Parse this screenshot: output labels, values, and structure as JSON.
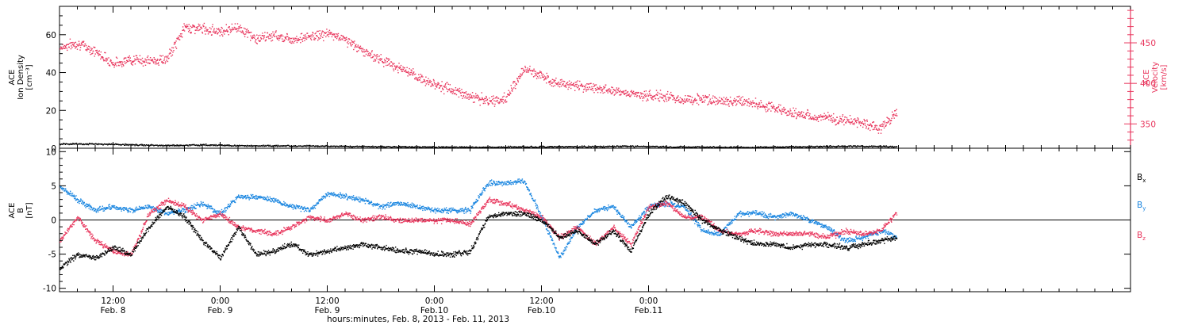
{
  "chart_data": [
    {
      "type": "scatter",
      "panel": "top",
      "ylabel_lines": [
        "ACE",
        "Ion Density",
        "[cm⁻³]"
      ],
      "ylabel2_lines": [
        "ACE",
        "Velocity",
        "[km/s]"
      ],
      "ylim": [
        0,
        75
      ],
      "yticks": [
        0,
        20,
        40,
        60
      ],
      "y2lim": [
        320,
        495
      ],
      "y2ticks": [
        350,
        400,
        450
      ],
      "colors": {
        "density": "#000000",
        "velocity": "#e8365d"
      },
      "series": [
        {
          "key": "velocity",
          "axis": "right",
          "hours": [
            0,
            2,
            4,
            6,
            8,
            10,
            12,
            14,
            16,
            18,
            20,
            22,
            24,
            26,
            28,
            30,
            32,
            34,
            36,
            38,
            40,
            42,
            44,
            46,
            48,
            50,
            52,
            54,
            56,
            58,
            60,
            62,
            64,
            66,
            68,
            70,
            72,
            74,
            76,
            78,
            80,
            82,
            84,
            86,
            88,
            90,
            92,
            94
          ],
          "values": [
            445,
            450,
            440,
            425,
            430,
            428,
            430,
            470,
            468,
            465,
            470,
            455,
            460,
            455,
            458,
            462,
            455,
            440,
            430,
            420,
            408,
            400,
            392,
            385,
            378,
            382,
            418,
            410,
            400,
            398,
            395,
            392,
            388,
            385,
            384,
            380,
            382,
            378,
            380,
            375,
            370,
            364,
            360,
            358,
            355,
            352,
            345,
            368
          ]
        },
        {
          "key": "density",
          "axis": "left",
          "hours": [
            0,
            4,
            8,
            12,
            16,
            20,
            24,
            28,
            32,
            36,
            40,
            44,
            48,
            52,
            56,
            60,
            64,
            68,
            72,
            76,
            80,
            84,
            88,
            92,
            94
          ],
          "values": [
            2.5,
            2.4,
            2.1,
            1.6,
            2.0,
            1.6,
            1.5,
            1.4,
            1.2,
            1.0,
            0.9,
            0.8,
            0.8,
            0.9,
            1.0,
            1.1,
            1.3,
            1.0,
            0.8,
            0.7,
            0.8,
            1.0,
            1.3,
            1.2,
            1.0
          ]
        }
      ]
    },
    {
      "type": "scatter",
      "panel": "bottom",
      "ylabel_lines": [
        "ACE",
        "B",
        "[nT]"
      ],
      "ylim": [
        -10.5,
        10.5
      ],
      "yticks": [
        -10,
        -5,
        0,
        5,
        10
      ],
      "colors": {
        "bx": "#000000",
        "by": "#1a86e0",
        "bz": "#e8365d"
      },
      "legend": [
        {
          "label": "B",
          "sub": "x",
          "key": "bx"
        },
        {
          "label": "B",
          "sub": "y",
          "key": "by"
        },
        {
          "label": "B",
          "sub": "z",
          "key": "bz"
        }
      ],
      "series": [
        {
          "key": "by",
          "hours": [
            0,
            2,
            4,
            6,
            8,
            10,
            12,
            14,
            16,
            18,
            20,
            22,
            24,
            26,
            28,
            30,
            32,
            34,
            36,
            38,
            40,
            42,
            44,
            46,
            48,
            50,
            52,
            54,
            56,
            58,
            60,
            62,
            64,
            66,
            68,
            70,
            72,
            74,
            76,
            78,
            80,
            82,
            84,
            86,
            88,
            90,
            92,
            94
          ],
          "values": [
            5.0,
            3.0,
            1.5,
            2.0,
            1.5,
            2.0,
            1.0,
            1.5,
            2.5,
            1.0,
            3.5,
            3.5,
            3.0,
            2.0,
            1.5,
            4.0,
            3.5,
            3.0,
            2.0,
            2.5,
            2.0,
            1.5,
            1.5,
            1.5,
            5.5,
            5.5,
            5.8,
            0.5,
            -5.5,
            -1.0,
            1.5,
            2.0,
            -1.0,
            2.0,
            2.5,
            2.0,
            -1.5,
            -2.0,
            1.0,
            1.0,
            0.5,
            1.0,
            0.0,
            -1.0,
            -3.0,
            -2.5,
            -1.5,
            -2.5
          ]
        },
        {
          "key": "bz",
          "hours": [
            0,
            2,
            4,
            6,
            8,
            10,
            12,
            14,
            16,
            18,
            20,
            22,
            24,
            26,
            28,
            30,
            32,
            34,
            36,
            38,
            40,
            42,
            44,
            46,
            48,
            50,
            52,
            54,
            56,
            58,
            60,
            62,
            64,
            66,
            68,
            70,
            72,
            74,
            76,
            78,
            80,
            82,
            84,
            86,
            88,
            90,
            92,
            94
          ],
          "values": [
            -3.0,
            0.5,
            -3.0,
            -4.5,
            -5.0,
            1.0,
            3.0,
            2.0,
            0.0,
            1.0,
            -1.0,
            -1.5,
            -2.0,
            -1.0,
            0.5,
            0.0,
            1.0,
            0.0,
            0.5,
            0.0,
            0.0,
            0.0,
            0.0,
            -0.5,
            3.0,
            2.5,
            1.5,
            0.5,
            -2.5,
            -1.0,
            -3.5,
            -1.0,
            -3.5,
            2.0,
            2.5,
            0.5,
            0.5,
            -1.5,
            -2.0,
            -1.5,
            -2.0,
            -2.0,
            -2.0,
            -2.5,
            -1.5,
            -2.0,
            -1.5,
            1.5
          ]
        },
        {
          "key": "bx",
          "hours": [
            0,
            2,
            4,
            6,
            8,
            10,
            12,
            14,
            16,
            18,
            20,
            22,
            24,
            26,
            28,
            30,
            32,
            34,
            36,
            38,
            40,
            42,
            44,
            46,
            48,
            50,
            52,
            54,
            56,
            58,
            60,
            62,
            64,
            66,
            68,
            70,
            72,
            74,
            76,
            78,
            80,
            82,
            84,
            86,
            88,
            90,
            92,
            94
          ],
          "values": [
            -7.0,
            -5.0,
            -5.5,
            -4.0,
            -5.0,
            -1.0,
            2.0,
            0.5,
            -3.0,
            -5.5,
            -1.0,
            -5.0,
            -4.5,
            -3.5,
            -5.0,
            -4.5,
            -4.0,
            -3.5,
            -4.0,
            -4.5,
            -4.5,
            -5.0,
            -5.0,
            -4.5,
            0.5,
            1.0,
            1.0,
            0.0,
            -2.5,
            -1.5,
            -3.5,
            -1.5,
            -4.5,
            1.0,
            3.5,
            2.5,
            0.0,
            -1.5,
            -2.5,
            -3.5,
            -3.5,
            -4.0,
            -3.5,
            -3.5,
            -4.0,
            -3.5,
            -3.0,
            -2.5
          ]
        }
      ]
    }
  ],
  "x_axis": {
    "xlim_hours": [
      0,
      120
    ],
    "ticks": [
      {
        "hour": 6,
        "time": "12:00",
        "date": "Feb. 8"
      },
      {
        "hour": 18,
        "time": "0:00",
        "date": "Feb. 9"
      },
      {
        "hour": 30,
        "time": "12:00",
        "date": "Feb. 9"
      },
      {
        "hour": 42,
        "time": "0:00",
        "date": "Feb.10"
      },
      {
        "hour": 54,
        "time": "12:00",
        "date": "Feb.10"
      },
      {
        "hour": 66,
        "time": "0:00",
        "date": "Feb.11"
      }
    ],
    "xlabel": "hours:minutes, Feb.  8, 2013 - Feb. 11, 2013"
  }
}
